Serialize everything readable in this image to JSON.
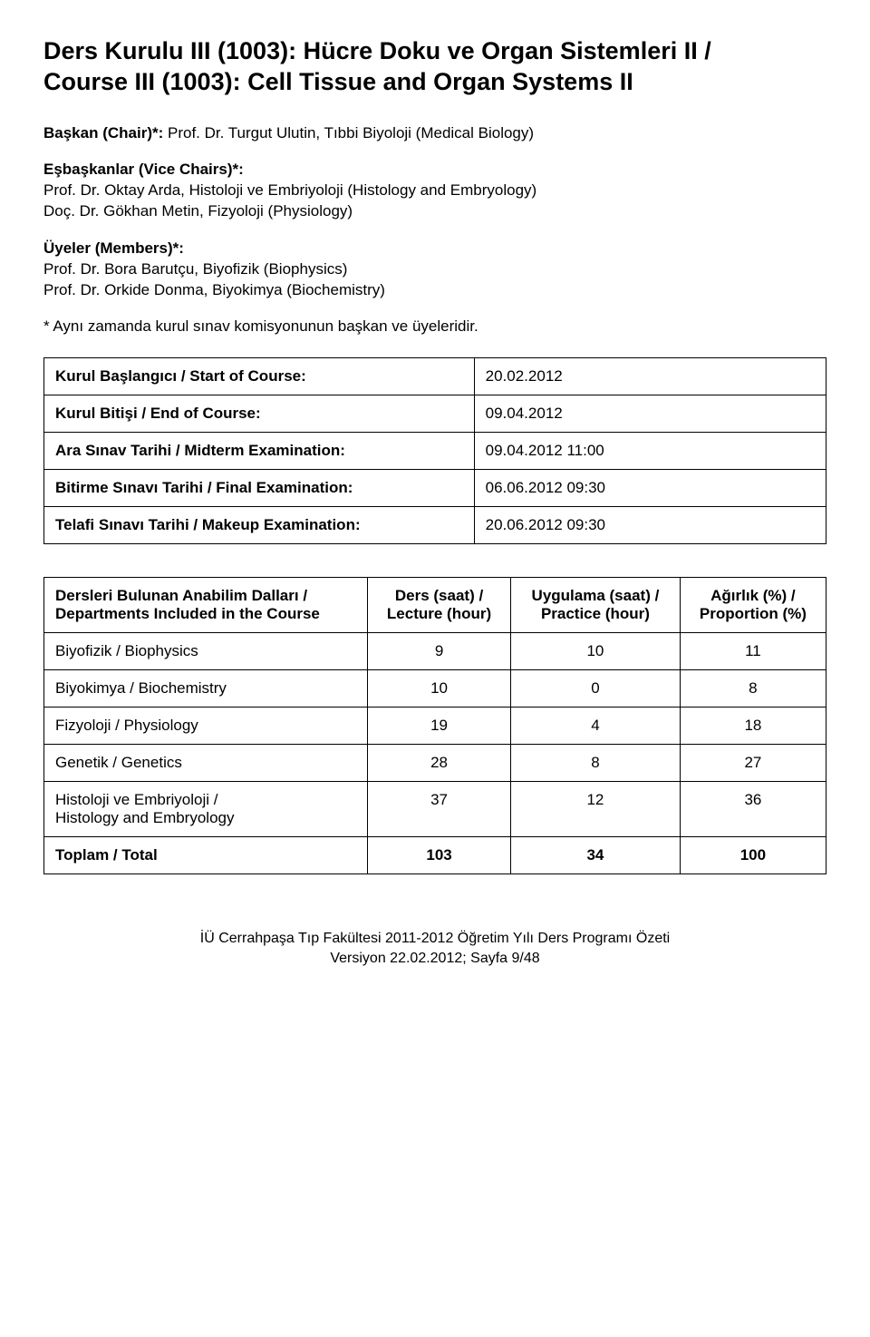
{
  "title_line1": "Ders Kurulu III (1003): Hücre Doku ve Organ Sistemleri II /",
  "title_line2": "Course III (1003): Cell Tissue and Organ Systems II",
  "chair_label": "Başkan (Chair)*: ",
  "chair_name": "Prof. Dr. Turgut Ulutin, Tıbbi Biyoloji (Medical Biology)",
  "vice_label": "Eşbaşkanlar (Vice Chairs)*:",
  "vice1": "Prof. Dr. Oktay Arda, Histoloji ve Embriyoloji (Histology and Embryology)",
  "vice2": "Doç. Dr. Gökhan Metin, Fizyoloji (Physiology)",
  "members_label": "Üyeler (Members)*:",
  "member1": "Prof. Dr. Bora Barutçu, Biyofizik (Biophysics)",
  "member2": "Prof. Dr. Orkide Donma, Biyokimya (Biochemistry)",
  "footnote": "* Aynı zamanda kurul sınav komisyonunun başkan ve üyeleridir.",
  "info_rows": [
    {
      "label": "Kurul Başlangıcı / Start of Course:",
      "value": "20.02.2012"
    },
    {
      "label": "Kurul Bitişi / End of Course:",
      "value": "09.04.2012"
    },
    {
      "label": "Ara Sınav Tarihi / Midterm Examination:",
      "value": "09.04.2012 11:00"
    },
    {
      "label": "Bitirme Sınavı Tarihi / Final Examination:",
      "value": "06.06.2012 09:30"
    },
    {
      "label": "Telafi Sınavı Tarihi / Makeup Examination:",
      "value": "20.06.2012 09:30"
    }
  ],
  "dept_headers": {
    "col1a": "Dersleri Bulunan Anabilim Dalları /",
    "col1b": "Departments Included in the Course",
    "col2a": "Ders (saat) /",
    "col2b": "Lecture (hour)",
    "col3a": "Uygulama (saat) /",
    "col3b": "Practice (hour)",
    "col4a": "Ağırlık (%) /",
    "col4b": "Proportion (%)"
  },
  "dept_rows": [
    {
      "name": "Biyofizik / Biophysics",
      "lecture": "9",
      "practice": "10",
      "prop": "11",
      "bold": false
    },
    {
      "name": "Biyokimya / Biochemistry",
      "lecture": "10",
      "practice": "0",
      "prop": "8",
      "bold": false
    },
    {
      "name": "Fizyoloji / Physiology",
      "lecture": "19",
      "practice": "4",
      "prop": "18",
      "bold": false
    },
    {
      "name": "Genetik / Genetics",
      "lecture": "28",
      "practice": "8",
      "prop": "27",
      "bold": false
    },
    {
      "name": "Histoloji ve Embriyoloji  /\nHistology and Embryology",
      "lecture": "37",
      "practice": "12",
      "prop": "36",
      "bold": false
    },
    {
      "name": "Toplam / Total",
      "lecture": "103",
      "practice": "34",
      "prop": "100",
      "bold": true
    }
  ],
  "footer_line1": "İÜ Cerrahpaşa Tıp Fakültesi 2011-2012 Öğretim Yılı Ders Programı Özeti",
  "footer_line2": "Versiyon 22.02.2012; Sayfa 9/48"
}
